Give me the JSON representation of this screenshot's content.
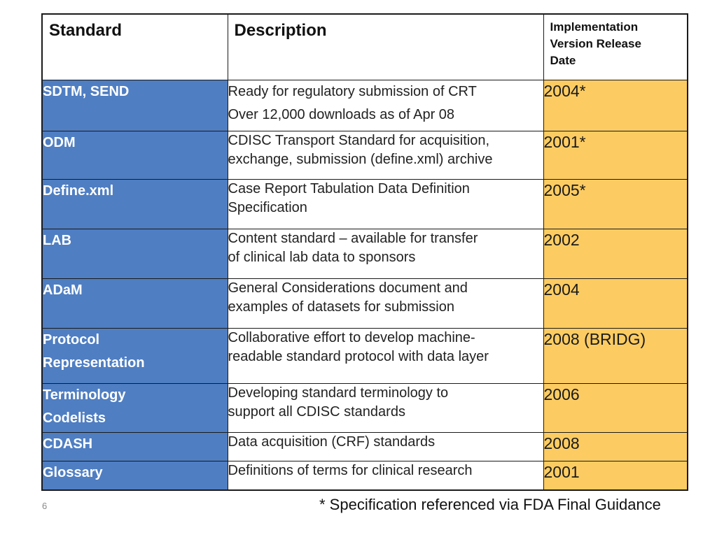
{
  "table": {
    "headers": {
      "standard": "Standard",
      "description": "Description",
      "date": [
        "Implementation",
        "Version Release",
        "Date"
      ]
    },
    "rows": [
      {
        "name": [
          "SDTM, SEND"
        ],
        "desc": [
          "Ready for regulatory submission of CRT",
          "Over 12,000 downloads as of Apr 08"
        ],
        "date": "2004*"
      },
      {
        "name": [
          "ODM"
        ],
        "desc": [
          "CDISC Transport Standard for acquisition,",
          "exchange, submission (define.xml) archive"
        ],
        "date": "2001*"
      },
      {
        "name": [
          "Define.xml"
        ],
        "desc": [
          "Case Report Tabulation Data Definition",
          "Specification"
        ],
        "date": "2005*"
      },
      {
        "name": [
          "LAB"
        ],
        "desc": [
          "Content standard – available for transfer",
          "of clinical lab data to sponsors"
        ],
        "date": "2002"
      },
      {
        "name": [
          "ADaM"
        ],
        "desc": [
          "General Considerations document and",
          "examples of datasets for submission"
        ],
        "date": "2004"
      },
      {
        "name": [
          "Protocol",
          "Representation"
        ],
        "desc": [
          "Collaborative effort to develop machine-",
          "readable standard protocol with data layer"
        ],
        "date": "2008 (BRIDG)"
      },
      {
        "name": [
          "Terminology",
          "Codelists"
        ],
        "desc": [
          "Developing standard terminology to",
          "support all CDISC standards"
        ],
        "date": "2006"
      },
      {
        "name": [
          "CDASH"
        ],
        "desc": [
          "Data acquisition (CRF) standards"
        ],
        "date": "2008"
      },
      {
        "name": [
          "Glossary"
        ],
        "desc": [
          "Definitions of terms for clinical research"
        ],
        "date": "2001"
      }
    ]
  },
  "slide_number": "6",
  "footnote": "* Specification referenced via FDA Final Guidance",
  "colors": {
    "name_column": "#4f7ec2",
    "date_column": "#fccc62",
    "border": "#1a1a1a"
  }
}
